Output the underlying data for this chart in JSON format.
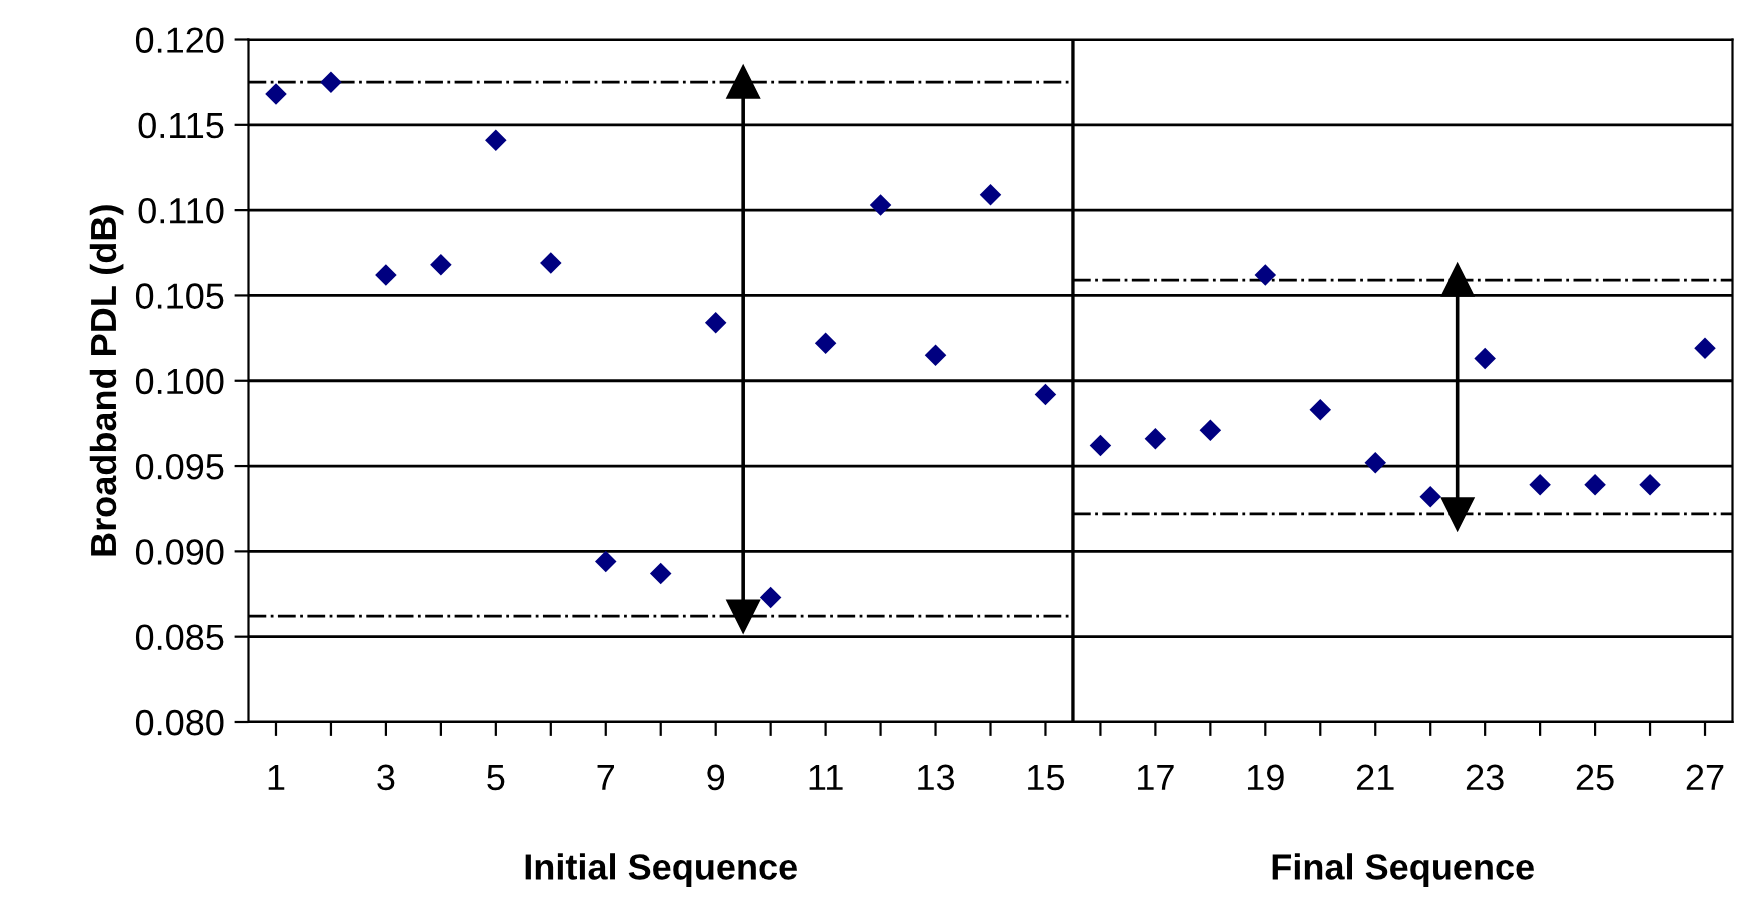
{
  "chart_data": {
    "type": "scatter",
    "ylabel": "Broadband PDL (dB)",
    "x": [
      1,
      2,
      3,
      4,
      5,
      6,
      7,
      8,
      9,
      10,
      11,
      12,
      13,
      14,
      15,
      16,
      17,
      18,
      19,
      20,
      21,
      22,
      23,
      24,
      25,
      26,
      27
    ],
    "xlim": [
      0.5,
      27.5
    ],
    "xticks": [
      1,
      {
        "value": 2,
        "label": null
      },
      3,
      {
        "value": 4,
        "label": null
      },
      5,
      {
        "value": 6,
        "label": null
      },
      7,
      {
        "value": 8,
        "label": null
      },
      9,
      {
        "value": 10,
        "label": null
      },
      11,
      {
        "value": 12,
        "label": null
      },
      13,
      {
        "value": 14,
        "label": null
      },
      15,
      {
        "value": 16,
        "label": null
      },
      17,
      {
        "value": 18,
        "label": null
      },
      19,
      {
        "value": 20,
        "label": null
      },
      21,
      {
        "value": 22,
        "label": null
      },
      23,
      {
        "value": 24,
        "label": null
      },
      25,
      {
        "value": 26,
        "label": null
      },
      27
    ],
    "ylim": [
      0.08,
      0.12
    ],
    "yticks": [
      {
        "value": 0.08,
        "label": "0.080"
      },
      {
        "value": 0.085,
        "label": "0.085"
      },
      {
        "value": 0.09,
        "label": "0.090"
      },
      {
        "value": 0.095,
        "label": "0.095"
      },
      {
        "value": 0.1,
        "label": "0.100"
      },
      {
        "value": 0.105,
        "label": "0.105"
      },
      {
        "value": 0.11,
        "label": "0.110"
      },
      {
        "value": 0.115,
        "label": "0.115"
      },
      {
        "value": 0.12,
        "label": "0.120"
      }
    ],
    "grid": "y",
    "marker": "diamond",
    "series": [
      {
        "type": "scatter",
        "color": "#000080",
        "values": [
          0.1168,
          0.1175,
          0.1062,
          0.1068,
          0.1141,
          0.1069,
          0.0894,
          0.0887,
          0.1034,
          0.0873,
          0.1022,
          0.1103,
          0.1015,
          0.1109,
          0.0992,
          0.0962,
          0.0966,
          0.0971,
          0.1062,
          0.0983,
          0.0952,
          0.0932,
          0.1013,
          0.0939,
          0.0939,
          0.0939,
          0.1019
        ]
      },
      {
        "type": "line",
        "color": "#000000",
        "line_style": "dashdot",
        "marker": "none",
        "x": [
          0.5,
          15.5
        ],
        "values": [
          0.1175,
          0.1175
        ]
      },
      {
        "type": "line",
        "color": "#000000",
        "line_style": "dashdot",
        "marker": "none",
        "x": [
          0.5,
          15.5
        ],
        "values": [
          0.0862,
          0.0862
        ]
      },
      {
        "type": "line",
        "color": "#000000",
        "line_style": "dashdot",
        "marker": "none",
        "x": [
          15.5,
          27.5
        ],
        "values": [
          0.1059,
          0.1059
        ]
      },
      {
        "type": "line",
        "color": "#000000",
        "line_style": "dashdot",
        "marker": "none",
        "x": [
          15.5,
          27.5
        ],
        "values": [
          0.0922,
          0.0922
        ]
      },
      {
        "type": "line",
        "color": "#000000",
        "line_style": "solid",
        "marker": "triangle",
        "x": [
          9.5,
          9.5
        ],
        "values": [
          0.0862,
          0.1175
        ]
      },
      {
        "type": "line",
        "color": "#000000",
        "line_style": "solid",
        "marker": "triangle",
        "x": [
          22.5,
          22.5
        ],
        "values": [
          0.0922,
          0.1059
        ]
      }
    ],
    "ref_lines": [
      {
        "axis": "x",
        "value": 15.5,
        "color": "#000000",
        "line_style": "solid"
      }
    ],
    "annotations": [
      "Initial Sequence",
      "Final Sequence"
    ]
  }
}
